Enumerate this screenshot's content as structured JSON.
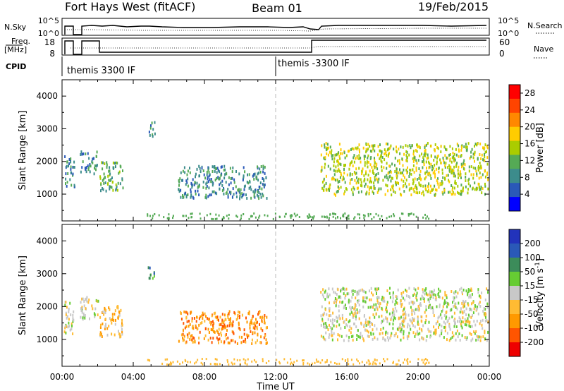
{
  "header": {
    "title": "Fort Hays West (fitACF)",
    "beam": "Beam 01",
    "date": "19/Feb/2015"
  },
  "strip_panels": {
    "nsky_label": "N.Sky",
    "nsky_ticks": [
      "10^5",
      "10^0"
    ],
    "nsearch_label": "N.Search",
    "nsearch_ticks": [
      "10^5",
      "10^0"
    ],
    "freq_label_1": "Freq.",
    "freq_label_2": "[MHz]",
    "freq_ticks": [
      "18",
      "8"
    ],
    "nave_label": "Nave",
    "nave_ticks": [
      "60",
      "0"
    ],
    "cpid_label": "CPID",
    "cpid_segments": [
      {
        "label": "themis 3300 IF",
        "start_hour": 0,
        "end_hour": 12
      },
      {
        "label": "themis -3300 IF",
        "start_hour": 12,
        "end_hour": 24
      }
    ]
  },
  "chart_data": [
    {
      "type": "heatmap",
      "name": "power",
      "ylabel": "Slant Range [km]",
      "xlabel": "",
      "x_ticks": [
        "00:00",
        "04:00",
        "08:00",
        "12:00",
        "16:00",
        "20:00",
        "00:00"
      ],
      "y_ticks": [
        1000,
        2000,
        3000,
        4000
      ],
      "xlim": [
        0,
        24
      ],
      "ylim": [
        180,
        4500
      ],
      "colorbar": {
        "label": "Power [dB]",
        "ticks": [
          4,
          8,
          12,
          16,
          20,
          24,
          28
        ],
        "range": [
          0,
          30
        ],
        "colors": [
          "#0000ff",
          "#2a59b8",
          "#3c8c8c",
          "#55aa55",
          "#aacc00",
          "#ffcc00",
          "#ff8800",
          "#ff4400",
          "#ff0000"
        ]
      },
      "regions": [
        {
          "hour_start": 0.1,
          "hour_end": 0.7,
          "range_low": 1200,
          "range_high": 2200,
          "power": 9
        },
        {
          "hour_start": 1.0,
          "hour_end": 2.0,
          "range_low": 1650,
          "range_high": 2350,
          "power": 7
        },
        {
          "hour_start": 2.1,
          "hour_end": 3.4,
          "range_low": 1100,
          "range_high": 2050,
          "power": 10
        },
        {
          "hour_start": 4.8,
          "hour_end": 5.2,
          "range_low": 2800,
          "range_high": 3250,
          "power": 8
        },
        {
          "hour_start": 6.5,
          "hour_end": 11.5,
          "range_low": 900,
          "range_high": 1900,
          "power": 6
        },
        {
          "hour_start": 14.5,
          "hour_end": 23.9,
          "range_low": 1000,
          "range_high": 2600,
          "power": 14
        }
      ]
    },
    {
      "type": "heatmap",
      "name": "velocity",
      "ylabel": "Slant Range [km]",
      "xlabel": "Time UT",
      "x_ticks": [
        "00:00",
        "04:00",
        "08:00",
        "12:00",
        "16:00",
        "20:00",
        "00:00"
      ],
      "y_ticks": [
        1000,
        2000,
        3000,
        4000
      ],
      "xlim": [
        0,
        24
      ],
      "ylim": [
        180,
        4500
      ],
      "colorbar": {
        "label": "Velocity [m s-1]",
        "label_main": "Velocity [m s",
        "label_exp": "-1",
        "label_end": "]",
        "ticks": [
          200,
          100,
          50,
          15,
          -15,
          -50,
          -100,
          -200
        ],
        "colors": [
          "#2233bb",
          "#2a59b8",
          "#3c8c5a",
          "#66cc33",
          "#c8c8c8",
          "#ffbb33",
          "#ff9900",
          "#ff5500",
          "#ee0000"
        ]
      },
      "regions": [
        {
          "hour_start": 0.1,
          "hour_end": 0.7,
          "range_low": 1200,
          "range_high": 2200,
          "velocity": 0
        },
        {
          "hour_start": 1.0,
          "hour_end": 2.0,
          "range_low": 1650,
          "range_high": 2350,
          "velocity": 0
        },
        {
          "hour_start": 2.1,
          "hour_end": 3.4,
          "range_low": 1100,
          "range_high": 2050,
          "velocity": -40
        },
        {
          "hour_start": 4.8,
          "hour_end": 5.2,
          "range_low": 2800,
          "range_high": 3250,
          "velocity": 60
        },
        {
          "hour_start": 6.5,
          "hour_end": 11.5,
          "range_low": 900,
          "range_high": 1900,
          "velocity": -60
        },
        {
          "hour_start": 14.5,
          "hour_end": 23.9,
          "range_low": 1000,
          "range_high": 2600,
          "velocity": 0
        }
      ]
    }
  ]
}
